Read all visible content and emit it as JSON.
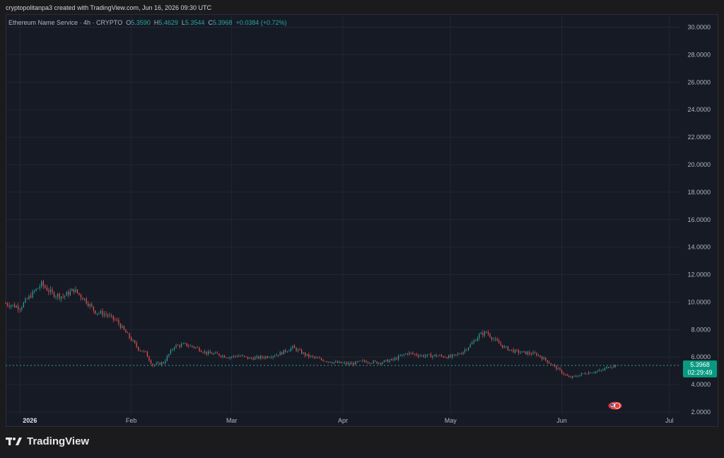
{
  "header": {
    "attribution": "cryptopolitanpa3 created with TradingView.com, Jun 16, 2026 09:30 UTC"
  },
  "legend": {
    "symbol": "Ethereum Name Service · 4h · CRYPTO",
    "open_label": "O",
    "open": "5.3590",
    "high_label": "H",
    "high": "5.4629",
    "low_label": "L",
    "low": "5.3544",
    "close_label": "C",
    "close": "5.3968",
    "change": "+0.0384 (+0.72%)"
  },
  "last_price": {
    "price": "5.3968",
    "countdown": "02:29:49"
  },
  "branding": {
    "logo_text": "TradingView"
  },
  "colors": {
    "up": "#26a69a",
    "down": "#ef5350",
    "background": "#161a25",
    "grid": "#232733",
    "axis_text": "#b2b5be",
    "price_badge": "#089981"
  },
  "chart_data": {
    "type": "line",
    "title": "",
    "xlabel": "",
    "ylabel": "",
    "ylim": [
      2,
      30
    ],
    "y_ticks": [
      "30.0000",
      "28.0000",
      "26.0000",
      "24.0000",
      "22.0000",
      "20.0000",
      "18.0000",
      "16.0000",
      "14.0000",
      "12.0000",
      "10.0000",
      "8.0000",
      "6.0000",
      "4.0000",
      "2.0000"
    ],
    "x_ticks": [
      "2026",
      "Feb",
      "Mar",
      "Apr",
      "May",
      "Jun",
      "Jul"
    ],
    "x_tick_dates": [
      "2026-01-01",
      "2026-02-01",
      "2026-03-01",
      "2026-04-01",
      "2026-05-01",
      "2026-06-01",
      "2026-07-01"
    ],
    "x_range": [
      "2025-12-28",
      "2026-07-04"
    ],
    "grid": true,
    "series": [
      {
        "x": [
          "2025-12-28",
          "2026-01-01",
          "2026-01-04",
          "2026-01-07",
          "2026-01-10",
          "2026-01-13",
          "2026-01-16",
          "2026-01-19",
          "2026-01-22",
          "2026-01-25",
          "2026-01-28",
          "2026-01-31",
          "2026-02-03",
          "2026-02-05",
          "2026-02-07",
          "2026-02-10",
          "2026-02-13",
          "2026-02-16",
          "2026-02-19",
          "2026-02-22",
          "2026-02-25",
          "2026-02-28",
          "2026-03-03",
          "2026-03-06",
          "2026-03-10",
          "2026-03-14",
          "2026-03-18",
          "2026-03-22",
          "2026-03-26",
          "2026-03-30",
          "2026-04-03",
          "2026-04-07",
          "2026-04-11",
          "2026-04-15",
          "2026-04-19",
          "2026-04-23",
          "2026-04-27",
          "2026-05-01",
          "2026-05-04",
          "2026-05-07",
          "2026-05-09",
          "2026-05-11",
          "2026-05-13",
          "2026-05-16",
          "2026-05-19",
          "2026-05-22",
          "2026-05-25",
          "2026-05-28",
          "2026-05-31",
          "2026-06-03",
          "2026-06-05",
          "2026-06-07",
          "2026-06-09",
          "2026-06-12",
          "2026-06-14",
          "2026-06-16"
        ],
        "values": [
          9.9,
          9.6,
          10.5,
          11.3,
          10.6,
          10.4,
          10.9,
          10.2,
          9.3,
          9.1,
          8.6,
          7.6,
          6.6,
          6.3,
          5.4,
          5.6,
          6.8,
          6.9,
          6.7,
          6.3,
          6.2,
          6.0,
          6.1,
          5.9,
          6.0,
          6.2,
          6.7,
          6.1,
          5.8,
          5.6,
          5.5,
          5.7,
          5.6,
          5.8,
          6.3,
          6.1,
          6.1,
          6.0,
          6.3,
          7.0,
          7.6,
          7.8,
          7.3,
          6.7,
          6.4,
          6.3,
          6.2,
          5.7,
          5.1,
          4.5,
          4.6,
          4.8,
          4.9,
          5.0,
          5.3,
          5.4
        ]
      }
    ],
    "current_price": 5.3968
  }
}
